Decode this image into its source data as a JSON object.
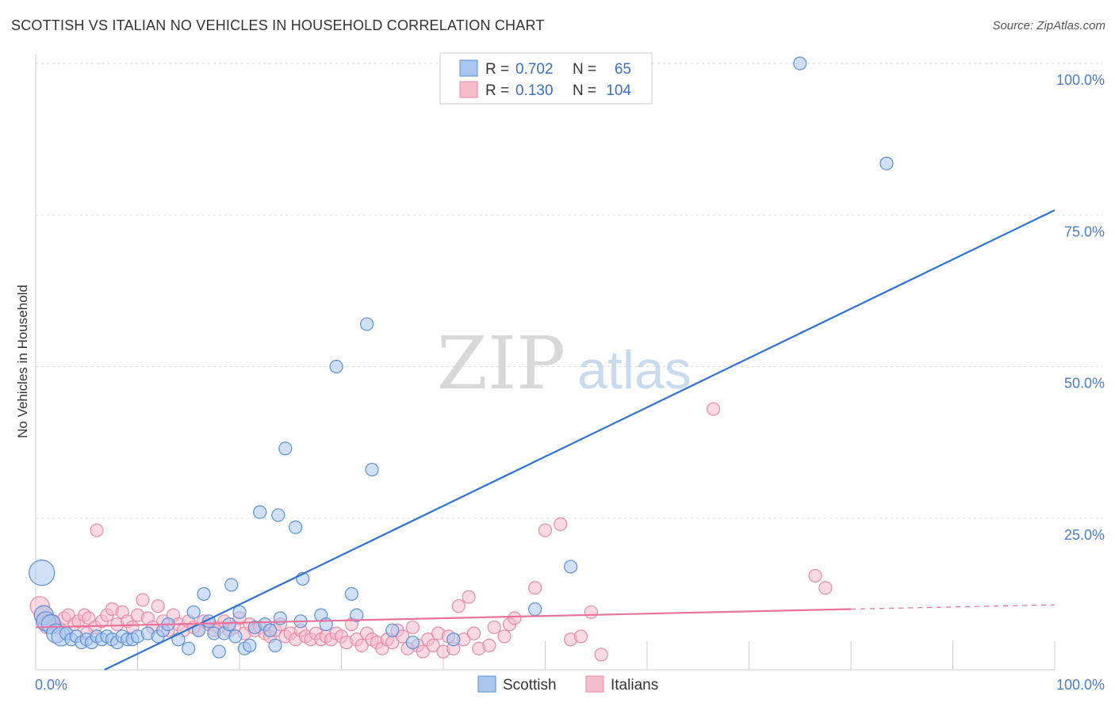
{
  "title": "SCOTTISH VS ITALIAN NO VEHICLES IN HOUSEHOLD CORRELATION CHART",
  "source": "Source: ZipAtlas.com",
  "watermark": {
    "zip": "ZIP",
    "atlas": "atlas"
  },
  "colors": {
    "scottish_fill": "#a9c6ee",
    "scottish_stroke": "#5b8fd6",
    "scottish_line": "#2e73d0",
    "italians_fill": "#f5bccb",
    "italians_stroke": "#e58aa4",
    "italians_line": "#e8729a"
  },
  "legend": {
    "rows": [
      {
        "r_label": "R =",
        "r_value": "0.702",
        "n_label": "N =",
        "n_value": "65"
      },
      {
        "r_label": "R =",
        "r_value": "0.130",
        "n_label": "N =",
        "n_value": "104"
      }
    ]
  },
  "chart_data": {
    "type": "scatter",
    "title": "SCOTTISH VS ITALIAN NO VEHICLES IN HOUSEHOLD CORRELATION CHART",
    "xlabel": "",
    "ylabel": "No Vehicles in Household",
    "xlim": [
      0,
      100
    ],
    "ylim": [
      0,
      100
    ],
    "x_tick_labels": [
      "0.0%",
      "100.0%"
    ],
    "y_ticks": [
      25,
      50,
      75,
      100
    ],
    "y_tick_labels": [
      "25.0%",
      "50.0%",
      "75.0%",
      "100.0%"
    ],
    "grid": true,
    "legend_placement": "top-center",
    "series": [
      {
        "name": "Scottish",
        "r": 0.702,
        "n": 65,
        "trend": {
          "x0": 0,
          "y0": -5.5,
          "x1": 100,
          "y1": 75.8,
          "dashed_from": null
        },
        "points": [
          {
            "x": 0.6,
            "y": 16,
            "s": 3
          },
          {
            "x": 0.8,
            "y": 9,
            "s": 2
          },
          {
            "x": 1,
            "y": 8,
            "s": 2
          },
          {
            "x": 1.5,
            "y": 7.5,
            "s": 2
          },
          {
            "x": 2,
            "y": 6,
            "s": 2
          },
          {
            "x": 2.5,
            "y": 5.5,
            "s": 2
          },
          {
            "x": 3,
            "y": 6,
            "s": 1
          },
          {
            "x": 3.5,
            "y": 5,
            "s": 1
          },
          {
            "x": 4,
            "y": 5.5,
            "s": 1
          },
          {
            "x": 4.5,
            "y": 4.5,
            "s": 1
          },
          {
            "x": 5,
            "y": 5,
            "s": 1
          },
          {
            "x": 5.5,
            "y": 4.5,
            "s": 1
          },
          {
            "x": 6,
            "y": 5.5,
            "s": 1
          },
          {
            "x": 6.5,
            "y": 5,
            "s": 1
          },
          {
            "x": 7,
            "y": 5.5,
            "s": 1
          },
          {
            "x": 7.5,
            "y": 5,
            "s": 1
          },
          {
            "x": 8,
            "y": 4.5,
            "s": 1
          },
          {
            "x": 8.5,
            "y": 5.5,
            "s": 1
          },
          {
            "x": 9,
            "y": 5,
            "s": 1
          },
          {
            "x": 9.5,
            "y": 5,
            "s": 1
          },
          {
            "x": 10,
            "y": 5.5,
            "s": 1
          },
          {
            "x": 11,
            "y": 6,
            "s": 1
          },
          {
            "x": 12,
            "y": 5.5,
            "s": 1
          },
          {
            "x": 12.5,
            "y": 6.5,
            "s": 1
          },
          {
            "x": 13,
            "y": 7.5,
            "s": 1
          },
          {
            "x": 14,
            "y": 5,
            "s": 1
          },
          {
            "x": 15,
            "y": 3.5,
            "s": 1
          },
          {
            "x": 15.5,
            "y": 9.5,
            "s": 1
          },
          {
            "x": 16,
            "y": 6.5,
            "s": 1
          },
          {
            "x": 16.5,
            "y": 12.5,
            "s": 1
          },
          {
            "x": 17,
            "y": 8,
            "s": 1
          },
          {
            "x": 17.5,
            "y": 6,
            "s": 1
          },
          {
            "x": 18,
            "y": 3,
            "s": 1
          },
          {
            "x": 18.5,
            "y": 6,
            "s": 1
          },
          {
            "x": 19,
            "y": 7.5,
            "s": 1
          },
          {
            "x": 19.2,
            "y": 14,
            "s": 1
          },
          {
            "x": 19.6,
            "y": 5.5,
            "s": 1
          },
          {
            "x": 20,
            "y": 9.5,
            "s": 1
          },
          {
            "x": 20.5,
            "y": 3.5,
            "s": 1
          },
          {
            "x": 21,
            "y": 4,
            "s": 1
          },
          {
            "x": 21.5,
            "y": 7,
            "s": 1
          },
          {
            "x": 22,
            "y": 26,
            "s": 1
          },
          {
            "x": 22.5,
            "y": 7.5,
            "s": 1
          },
          {
            "x": 23,
            "y": 6.5,
            "s": 1
          },
          {
            "x": 23.5,
            "y": 4,
            "s": 1
          },
          {
            "x": 23.8,
            "y": 25.5,
            "s": 1
          },
          {
            "x": 24,
            "y": 8.5,
            "s": 1
          },
          {
            "x": 24.5,
            "y": 36.5,
            "s": 1
          },
          {
            "x": 25.5,
            "y": 23.5,
            "s": 1
          },
          {
            "x": 26,
            "y": 8,
            "s": 1
          },
          {
            "x": 26.2,
            "y": 15,
            "s": 1
          },
          {
            "x": 28,
            "y": 9,
            "s": 1
          },
          {
            "x": 28.5,
            "y": 7.5,
            "s": 1
          },
          {
            "x": 29.5,
            "y": 50,
            "s": 1
          },
          {
            "x": 31,
            "y": 12.5,
            "s": 1
          },
          {
            "x": 31.5,
            "y": 9,
            "s": 1
          },
          {
            "x": 32.5,
            "y": 57,
            "s": 1
          },
          {
            "x": 33,
            "y": 33,
            "s": 1
          },
          {
            "x": 35,
            "y": 6.5,
            "s": 1
          },
          {
            "x": 37,
            "y": 4.5,
            "s": 1
          },
          {
            "x": 41,
            "y": 5,
            "s": 1
          },
          {
            "x": 49,
            "y": 10,
            "s": 1
          },
          {
            "x": 52.5,
            "y": 17,
            "s": 1
          },
          {
            "x": 75,
            "y": 100,
            "s": 1
          },
          {
            "x": 83.5,
            "y": 83.5,
            "s": 1
          }
        ]
      },
      {
        "name": "Italians",
        "r": 0.13,
        "n": 104,
        "trend": {
          "x0": 0,
          "y0": 7.0,
          "x1": 80,
          "y1": 10.0,
          "dashed_to": 100,
          "dashed_y": 10.7
        },
        "points": [
          {
            "x": 0.4,
            "y": 10.5,
            "s": 2
          },
          {
            "x": 0.8,
            "y": 9,
            "s": 2
          },
          {
            "x": 1.2,
            "y": 7.5,
            "s": 2
          },
          {
            "x": 1.8,
            "y": 8,
            "s": 1
          },
          {
            "x": 2.2,
            "y": 7,
            "s": 1
          },
          {
            "x": 2.8,
            "y": 8.5,
            "s": 1
          },
          {
            "x": 3.2,
            "y": 9,
            "s": 1
          },
          {
            "x": 3.8,
            "y": 7.5,
            "s": 1
          },
          {
            "x": 4.2,
            "y": 8,
            "s": 1
          },
          {
            "x": 4.8,
            "y": 9,
            "s": 1
          },
          {
            "x": 5.2,
            "y": 8.5,
            "s": 1
          },
          {
            "x": 5.8,
            "y": 7,
            "s": 1
          },
          {
            "x": 6,
            "y": 23,
            "s": 1
          },
          {
            "x": 6.5,
            "y": 8,
            "s": 1
          },
          {
            "x": 7,
            "y": 9,
            "s": 1
          },
          {
            "x": 7.5,
            "y": 10,
            "s": 1
          },
          {
            "x": 8,
            "y": 7.5,
            "s": 1
          },
          {
            "x": 8.5,
            "y": 9.5,
            "s": 1
          },
          {
            "x": 9,
            "y": 8,
            "s": 1
          },
          {
            "x": 9.5,
            "y": 7,
            "s": 1
          },
          {
            "x": 10,
            "y": 9,
            "s": 1
          },
          {
            "x": 10.5,
            "y": 11.5,
            "s": 1
          },
          {
            "x": 11,
            "y": 8.5,
            "s": 1
          },
          {
            "x": 11.5,
            "y": 7,
            "s": 1
          },
          {
            "x": 12,
            "y": 10.5,
            "s": 1
          },
          {
            "x": 12.5,
            "y": 8,
            "s": 1
          },
          {
            "x": 13,
            "y": 6.5,
            "s": 1
          },
          {
            "x": 13.5,
            "y": 9,
            "s": 1
          },
          {
            "x": 14,
            "y": 7.5,
            "s": 1
          },
          {
            "x": 14.5,
            "y": 6.5,
            "s": 1
          },
          {
            "x": 15,
            "y": 8,
            "s": 1
          },
          {
            "x": 15.5,
            "y": 7,
            "s": 1
          },
          {
            "x": 16,
            "y": 6.5,
            "s": 1
          },
          {
            "x": 16.5,
            "y": 8,
            "s": 1
          },
          {
            "x": 17,
            "y": 7.5,
            "s": 1
          },
          {
            "x": 17.5,
            "y": 6.5,
            "s": 1
          },
          {
            "x": 18,
            "y": 7,
            "s": 1
          },
          {
            "x": 18.5,
            "y": 8,
            "s": 1
          },
          {
            "x": 19,
            "y": 6.5,
            "s": 1
          },
          {
            "x": 19.5,
            "y": 7,
            "s": 1
          },
          {
            "x": 20,
            "y": 8.5,
            "s": 1
          },
          {
            "x": 20.5,
            "y": 6,
            "s": 1
          },
          {
            "x": 21,
            "y": 7.5,
            "s": 1
          },
          {
            "x": 21.5,
            "y": 6.5,
            "s": 1
          },
          {
            "x": 22,
            "y": 7,
            "s": 1
          },
          {
            "x": 22.5,
            "y": 6,
            "s": 1
          },
          {
            "x": 23,
            "y": 5.5,
            "s": 1
          },
          {
            "x": 23.5,
            "y": 6.5,
            "s": 1
          },
          {
            "x": 24,
            "y": 7.5,
            "s": 1
          },
          {
            "x": 24.5,
            "y": 5.5,
            "s": 1
          },
          {
            "x": 25,
            "y": 6,
            "s": 1
          },
          {
            "x": 25.5,
            "y": 5,
            "s": 1
          },
          {
            "x": 26,
            "y": 6.5,
            "s": 1
          },
          {
            "x": 26.5,
            "y": 5.5,
            "s": 1
          },
          {
            "x": 27,
            "y": 5,
            "s": 1
          },
          {
            "x": 27.5,
            "y": 6,
            "s": 1
          },
          {
            "x": 28,
            "y": 5,
            "s": 1
          },
          {
            "x": 28.5,
            "y": 5.5,
            "s": 1
          },
          {
            "x": 29,
            "y": 5,
            "s": 1
          },
          {
            "x": 29.5,
            "y": 6,
            "s": 1
          },
          {
            "x": 30,
            "y": 5.5,
            "s": 1
          },
          {
            "x": 30.5,
            "y": 4.5,
            "s": 1
          },
          {
            "x": 31,
            "y": 7.5,
            "s": 1
          },
          {
            "x": 31.5,
            "y": 5,
            "s": 1
          },
          {
            "x": 32,
            "y": 4,
            "s": 1
          },
          {
            "x": 32.5,
            "y": 6,
            "s": 1
          },
          {
            "x": 33,
            "y": 5,
            "s": 1
          },
          {
            "x": 33.5,
            "y": 4.5,
            "s": 1
          },
          {
            "x": 34,
            "y": 3.5,
            "s": 1
          },
          {
            "x": 34.5,
            "y": 5,
            "s": 1
          },
          {
            "x": 35,
            "y": 4.5,
            "s": 1
          },
          {
            "x": 35.5,
            "y": 6.5,
            "s": 1
          },
          {
            "x": 36,
            "y": 5.5,
            "s": 1
          },
          {
            "x": 36.5,
            "y": 3.5,
            "s": 1
          },
          {
            "x": 37,
            "y": 7,
            "s": 1
          },
          {
            "x": 37.5,
            "y": 4,
            "s": 1
          },
          {
            "x": 38,
            "y": 3,
            "s": 1
          },
          {
            "x": 38.5,
            "y": 5,
            "s": 1
          },
          {
            "x": 39,
            "y": 4,
            "s": 1
          },
          {
            "x": 39.5,
            "y": 6,
            "s": 1
          },
          {
            "x": 40,
            "y": 3,
            "s": 1
          },
          {
            "x": 40.5,
            "y": 5.5,
            "s": 1
          },
          {
            "x": 41,
            "y": 3.5,
            "s": 1
          },
          {
            "x": 41.5,
            "y": 10.5,
            "s": 1
          },
          {
            "x": 42,
            "y": 5,
            "s": 1
          },
          {
            "x": 42.5,
            "y": 12,
            "s": 1
          },
          {
            "x": 43,
            "y": 6,
            "s": 1
          },
          {
            "x": 43.5,
            "y": 3.5,
            "s": 1
          },
          {
            "x": 44.5,
            "y": 4,
            "s": 1
          },
          {
            "x": 45,
            "y": 7,
            "s": 1
          },
          {
            "x": 46,
            "y": 5.5,
            "s": 1
          },
          {
            "x": 46.5,
            "y": 7.5,
            "s": 1
          },
          {
            "x": 47,
            "y": 8.5,
            "s": 1
          },
          {
            "x": 49,
            "y": 13.5,
            "s": 1
          },
          {
            "x": 50,
            "y": 23,
            "s": 1
          },
          {
            "x": 51.5,
            "y": 24,
            "s": 1
          },
          {
            "x": 52.5,
            "y": 5,
            "s": 1
          },
          {
            "x": 53.5,
            "y": 5.5,
            "s": 1
          },
          {
            "x": 54.5,
            "y": 9.5,
            "s": 1
          },
          {
            "x": 55.5,
            "y": 2.5,
            "s": 1
          },
          {
            "x": 66.5,
            "y": 43,
            "s": 1
          },
          {
            "x": 76.5,
            "y": 15.5,
            "s": 1
          },
          {
            "x": 77.5,
            "y": 13.5,
            "s": 1
          },
          {
            "x": 5,
            "y": 6,
            "s": 1
          }
        ]
      }
    ]
  }
}
